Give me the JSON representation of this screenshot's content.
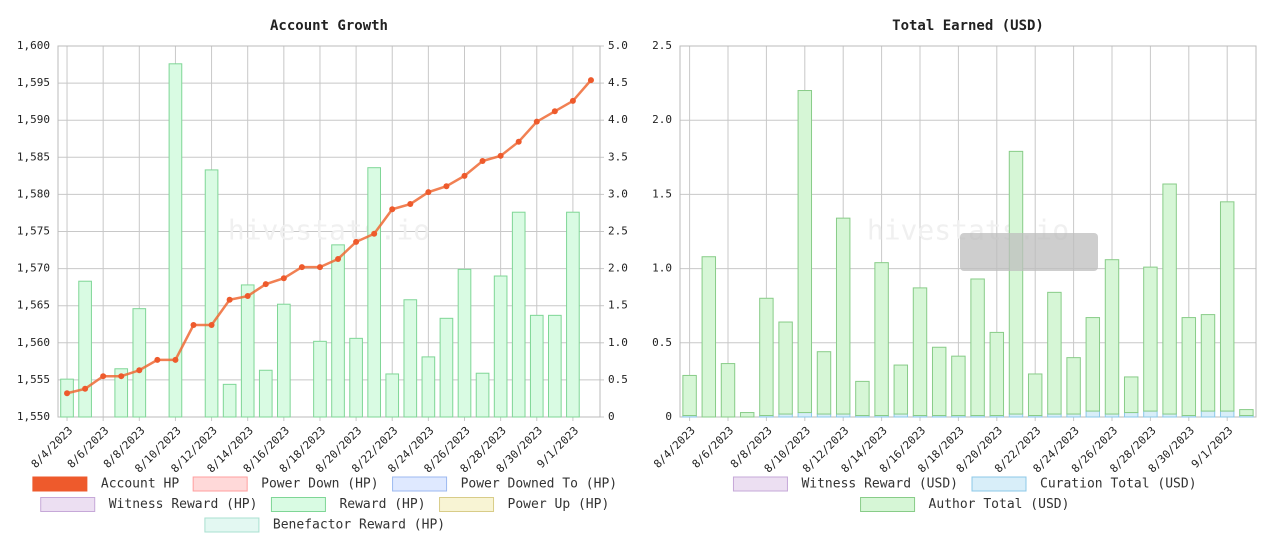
{
  "chart_data": [
    {
      "type": "bar",
      "title": "Account Growth",
      "watermark": "hivestats.io",
      "categories": [
        "8/4/2023",
        null,
        "8/6/2023",
        null,
        "8/8/2023",
        null,
        "8/10/2023",
        null,
        "8/12/2023",
        null,
        "8/14/2023",
        null,
        "8/16/2023",
        null,
        "8/18/2023",
        null,
        "8/20/2023",
        null,
        "8/22/2023",
        null,
        "8/24/2023",
        null,
        "8/26/2023",
        null,
        "8/28/2023",
        null,
        "8/30/2023",
        null,
        "9/1/2023",
        null
      ],
      "ylim": [
        1550,
        1600
      ],
      "yticks": [
        {
          "value": 1550,
          "label": "1,550"
        },
        {
          "value": 1555,
          "label": "1,555"
        },
        {
          "value": 1560,
          "label": "1,560"
        },
        {
          "value": 1565,
          "label": "1,565"
        },
        {
          "value": 1570,
          "label": "1,570"
        },
        {
          "value": 1575,
          "label": "1,575"
        },
        {
          "value": 1580,
          "label": "1,580"
        },
        {
          "value": 1585,
          "label": "1,585"
        },
        {
          "value": 1590,
          "label": "1,590"
        },
        {
          "value": 1595,
          "label": "1,595"
        },
        {
          "value": 1600,
          "label": "1,600"
        }
      ],
      "y2lim": [
        0,
        5
      ],
      "y2ticks": [
        0,
        0.5,
        {
          "value": 1,
          "label": "1.0"
        },
        1.5,
        {
          "value": 2,
          "label": "2.0"
        },
        2.5,
        {
          "value": 3,
          "label": "3.0"
        },
        3.5,
        {
          "value": 4,
          "label": "4.0"
        },
        4.5,
        {
          "value": 5,
          "label": "5.0"
        }
      ],
      "grid": true,
      "series": [
        {
          "name": "Account HP",
          "type": "line",
          "color": "#ee6a35",
          "border_color": "#ee5a2c",
          "values": [
            1553.2,
            1553.8,
            1555.5,
            1555.5,
            1556.3,
            1557.7,
            1557.7,
            1562.4,
            1562.4,
            1565.8,
            1566.3,
            1567.9,
            1568.7,
            1570.2,
            1570.2,
            1571.3,
            1573.6,
            1574.7,
            1578.0,
            1578.7,
            1580.3,
            1581.1,
            1582.5,
            1584.5,
            1585.2,
            1587.1,
            1589.8,
            1591.2,
            1592.6,
            1595.4
          ]
        },
        {
          "name": "Power Down (HP)",
          "color": "#ffd9d9",
          "border_color": "#ff9f9f"
        },
        {
          "name": "Power Downed To (HP)",
          "color": "#dfe9ff",
          "border_color": "#9cb9f0"
        },
        {
          "name": "Witness Reward (HP)",
          "color": "#ecdff2",
          "border_color": "#c6a8d8"
        },
        {
          "name": "Reward (HP)",
          "axis": "y2",
          "color": "#d9fbe3",
          "border_color": "#7fd696",
          "values": [
            0.51,
            1.83,
            null,
            0.65,
            1.46,
            null,
            4.76,
            null,
            3.33,
            0.44,
            1.78,
            0.63,
            1.52,
            null,
            1.02,
            2.32,
            1.06,
            3.36,
            0.58,
            1.58,
            0.81,
            1.33,
            1.99,
            0.59,
            1.9,
            2.76,
            1.37,
            1.37,
            2.76,
            null
          ]
        },
        {
          "name": "Power Up (HP)",
          "color": "#f8f4d4",
          "border_color": "#d8cc88"
        },
        {
          "name": "Benefactor Reward (HP)",
          "color": "#e3f8f2",
          "border_color": "#a8e0d0"
        }
      ]
    },
    {
      "type": "bar",
      "title": "Total Earned (USD)",
      "watermark": "hivestats.io",
      "stacked": true,
      "categories": [
        "8/4/2023",
        null,
        "8/6/2023",
        null,
        "8/8/2023",
        null,
        "8/10/2023",
        null,
        "8/12/2023",
        null,
        "8/14/2023",
        null,
        "8/16/2023",
        null,
        "8/18/2023",
        null,
        "8/20/2023",
        null,
        "8/22/2023",
        null,
        "8/24/2023",
        null,
        "8/26/2023",
        null,
        "8/28/2023",
        null,
        "8/30/2023",
        null,
        "9/1/2023",
        null
      ],
      "ylim": [
        0,
        2.5
      ],
      "yticks": [
        0,
        0.5,
        {
          "value": 1,
          "label": "1.0"
        },
        1.5,
        {
          "value": 2,
          "label": "2.0"
        },
        2.5
      ],
      "grid": true,
      "series": [
        {
          "name": "Witness Reward (USD)",
          "color": "#ecdff2",
          "border_color": "#c6a8d8"
        },
        {
          "name": "Curation Total (USD)",
          "color": "#d8eef9",
          "border_color": "#8cc8e8",
          "values": [
            0.01,
            0,
            0,
            0,
            0.01,
            0.02,
            0.03,
            0.02,
            0.02,
            0.01,
            0.01,
            0.02,
            0.01,
            0.01,
            0.01,
            0.01,
            0.01,
            0.02,
            0.01,
            0.02,
            0.02,
            0.04,
            0.02,
            0.03,
            0.04,
            0.02,
            0.01,
            0.04,
            0.04,
            0.01
          ]
        },
        {
          "name": "Author Total (USD)",
          "color": "#d6f6d6",
          "border_color": "#88cc88",
          "values": [
            0.27,
            1.08,
            0.36,
            0.03,
            0.79,
            0.62,
            2.17,
            0.42,
            1.32,
            0.23,
            1.03,
            0.33,
            0.86,
            0.46,
            0.4,
            0.92,
            0.56,
            1.77,
            0.28,
            0.82,
            0.38,
            0.63,
            1.04,
            0.24,
            0.97,
            1.55,
            0.66,
            0.65,
            1.41,
            0.04
          ]
        }
      ]
    }
  ]
}
